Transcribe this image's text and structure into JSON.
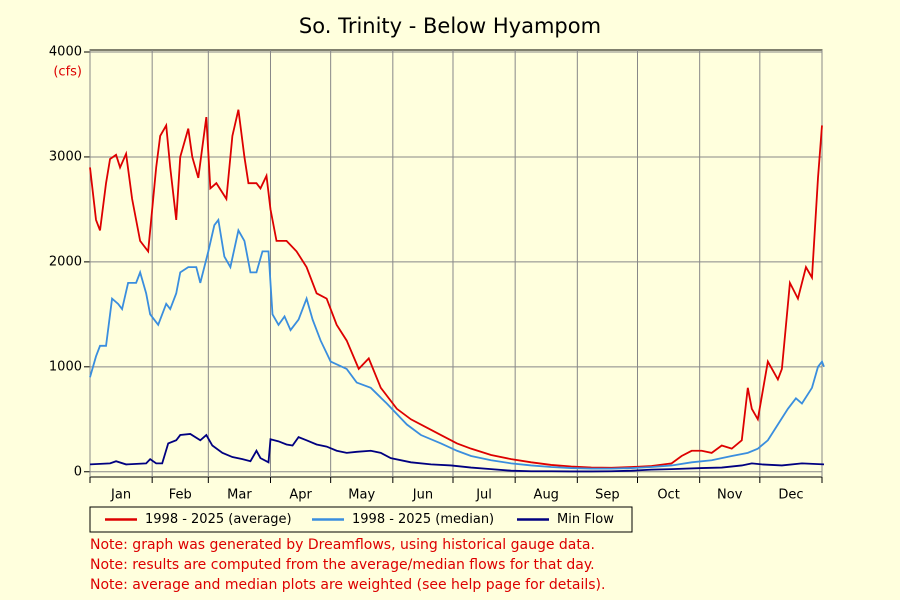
{
  "chart_data": {
    "type": "line",
    "title": "So. Trinity - Below Hyampom",
    "y_label": "(cfs)",
    "categories": [
      "Jan",
      "Feb",
      "Mar",
      "Apr",
      "May",
      "Jun",
      "Jul",
      "Aug",
      "Sep",
      "Oct",
      "Nov",
      "Dec"
    ],
    "xgrid": [
      0,
      31,
      59,
      90,
      120,
      151,
      181,
      212,
      243,
      273,
      304,
      334,
      365
    ],
    "xlim": [
      0,
      365
    ],
    "ylim": [
      -50,
      4000
    ],
    "yticks": [
      0,
      1000,
      2000,
      3000,
      4000
    ],
    "grid": true,
    "legend": "bottom",
    "series": [
      {
        "name": "1998 - 2025 (average)",
        "color": "#dd0000",
        "x": [
          0,
          3,
          5,
          8,
          10,
          13,
          15,
          18,
          21,
          25,
          29,
          33,
          35,
          38,
          40,
          43,
          45,
          49,
          51,
          54,
          58,
          60,
          63,
          68,
          71,
          74,
          77,
          79,
          83,
          85,
          88,
          90,
          93,
          98,
          103,
          108,
          113,
          118,
          123,
          128,
          134,
          139,
          145,
          153,
          160,
          168,
          175,
          183,
          190,
          200,
          210,
          220,
          230,
          240,
          250,
          260,
          270,
          280,
          290,
          295,
          300,
          305,
          310,
          315,
          320,
          325,
          328,
          330,
          333,
          338,
          343,
          345,
          349,
          353,
          357,
          360,
          363,
          365
        ],
        "values": [
          2900,
          2400,
          2300,
          2750,
          2980,
          3020,
          2900,
          3030,
          2600,
          2200,
          2100,
          2900,
          3200,
          3300,
          2900,
          2400,
          3000,
          3270,
          3000,
          2800,
          3380,
          2700,
          2750,
          2600,
          3200,
          3450,
          3000,
          2750,
          2750,
          2700,
          2820,
          2500,
          2200,
          2200,
          2100,
          1950,
          1700,
          1650,
          1400,
          1250,
          980,
          1080,
          800,
          600,
          500,
          420,
          350,
          270,
          220,
          160,
          120,
          90,
          65,
          50,
          40,
          38,
          45,
          55,
          80,
          150,
          200,
          200,
          180,
          250,
          220,
          300,
          800,
          600,
          500,
          1050,
          880,
          980,
          1800,
          1650,
          1950,
          1850,
          2800,
          3300
        ]
      },
      {
        "name": "1998 - 2025 (median)",
        "color": "#3a8ede",
        "x": [
          0,
          3,
          5,
          8,
          11,
          14,
          16,
          19,
          23,
          25,
          28,
          30,
          34,
          38,
          40,
          43,
          45,
          49,
          53,
          55,
          59,
          62,
          64,
          67,
          70,
          74,
          77,
          80,
          83,
          86,
          89,
          91,
          94,
          97,
          100,
          104,
          108,
          111,
          115,
          120,
          128,
          133,
          140,
          148,
          153,
          158,
          165,
          175,
          183,
          190,
          200,
          210,
          220,
          230,
          240,
          250,
          260,
          270,
          280,
          290,
          300,
          310,
          320,
          328,
          333,
          338,
          343,
          348,
          352,
          355,
          360,
          363,
          365,
          366
        ],
        "values": [
          900,
          1100,
          1200,
          1200,
          1650,
          1600,
          1550,
          1800,
          1800,
          1900,
          1700,
          1500,
          1400,
          1600,
          1550,
          1700,
          1900,
          1950,
          1950,
          1800,
          2100,
          2350,
          2400,
          2050,
          1950,
          2300,
          2200,
          1900,
          1900,
          2100,
          2100,
          1500,
          1400,
          1480,
          1350,
          1450,
          1650,
          1450,
          1250,
          1050,
          980,
          850,
          800,
          650,
          550,
          450,
          350,
          270,
          200,
          150,
          110,
          80,
          60,
          45,
          35,
          30,
          30,
          35,
          45,
          60,
          90,
          110,
          150,
          180,
          220,
          300,
          450,
          600,
          700,
          650,
          800,
          1000,
          1050,
          1000
        ]
      },
      {
        "name": "Min Flow",
        "color": "#000080",
        "x": [
          0,
          10,
          13,
          18,
          28,
          30,
          33,
          36,
          39,
          43,
          45,
          50,
          55,
          58,
          61,
          66,
          71,
          76,
          80,
          83,
          85,
          89,
          90,
          94,
          98,
          101,
          104,
          108,
          113,
          118,
          123,
          128,
          133,
          140,
          145,
          150,
          160,
          170,
          180,
          190,
          200,
          210,
          220,
          230,
          240,
          250,
          260,
          270,
          280,
          290,
          305,
          315,
          325,
          330,
          335,
          345,
          355,
          366
        ],
        "values": [
          70,
          80,
          100,
          70,
          80,
          120,
          80,
          80,
          270,
          300,
          350,
          360,
          300,
          350,
          250,
          180,
          140,
          120,
          100,
          200,
          130,
          90,
          310,
          290,
          260,
          250,
          330,
          300,
          260,
          240,
          200,
          180,
          190,
          200,
          180,
          130,
          90,
          70,
          60,
          40,
          25,
          10,
          5,
          5,
          3,
          3,
          5,
          10,
          20,
          25,
          35,
          40,
          60,
          80,
          70,
          60,
          80,
          70
        ]
      }
    ],
    "notes": [
      "Note: graph was generated by Dreamflows, using historical gauge data.",
      "Note: results are computed from the average/median flows for that day.",
      "Note: average and median plots are weighted (see help page for details)."
    ]
  }
}
